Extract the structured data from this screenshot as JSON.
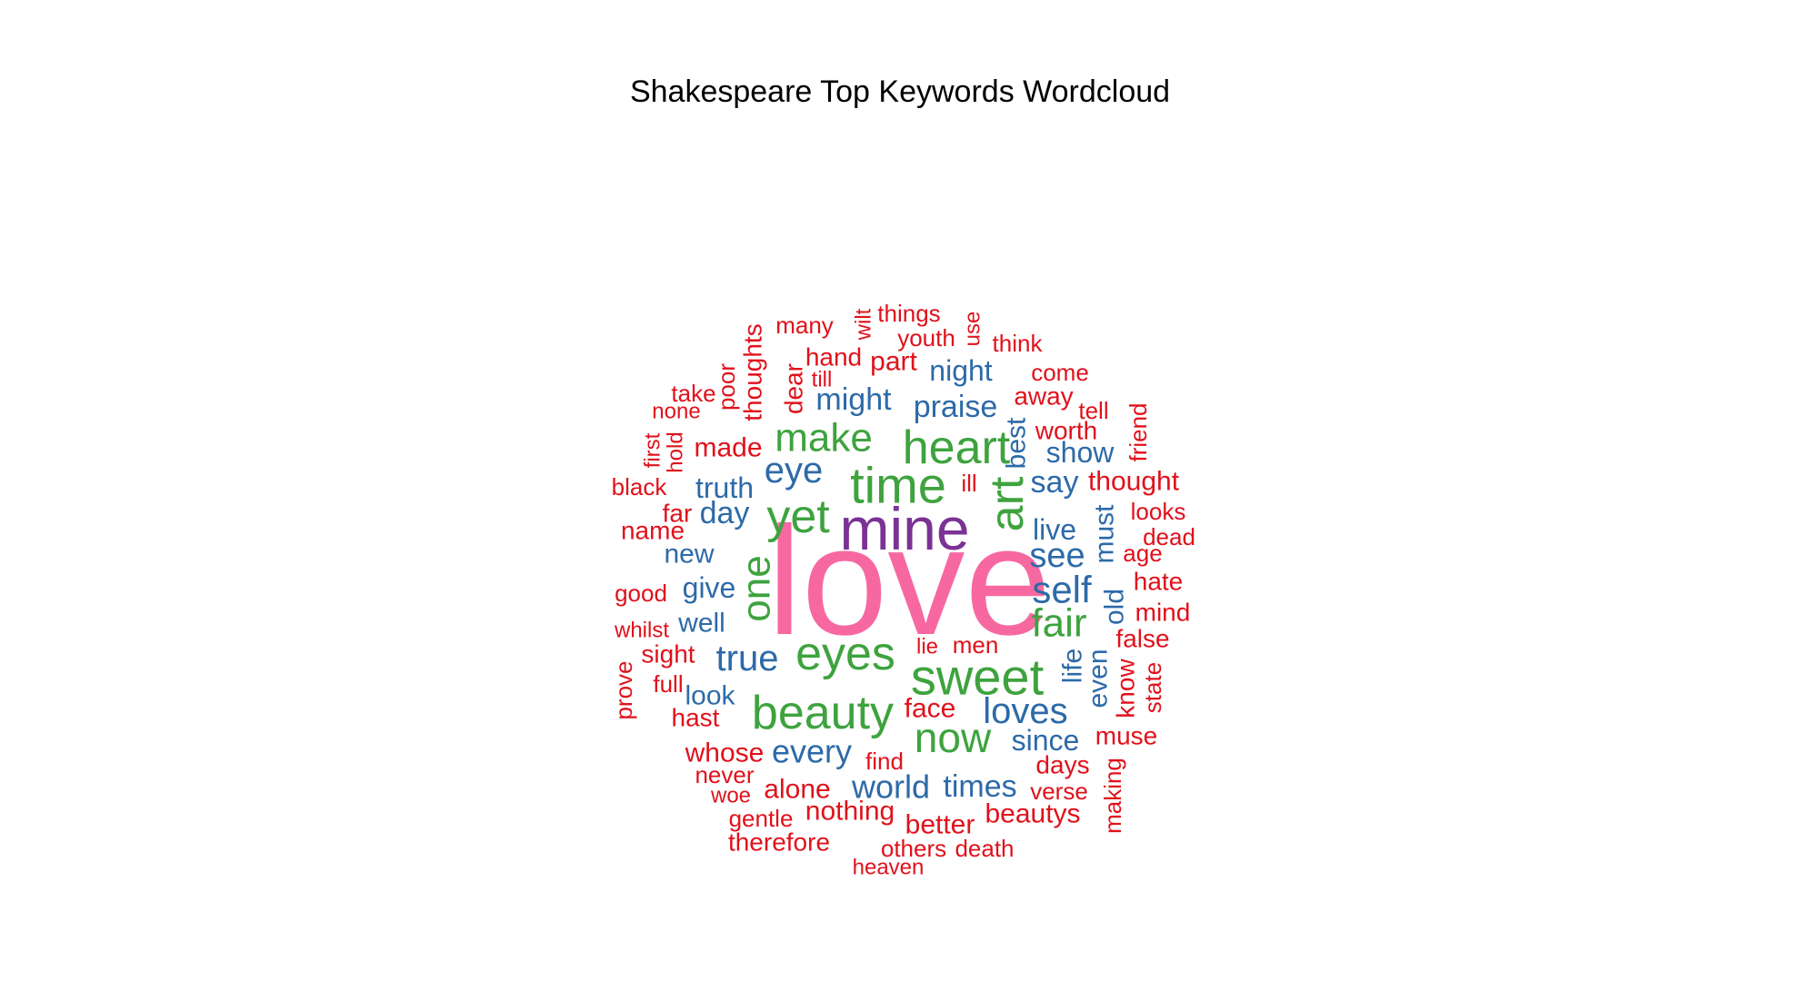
{
  "chart_data": {
    "type": "wordcloud",
    "title": "Shakespeare Top Keywords Wordcloud",
    "colors": {
      "pink": "#f768a1",
      "purple": "#7b3294",
      "green": "#3ea33e",
      "blue": "#2d6aa8",
      "red": "#e0111b"
    },
    "words": [
      {
        "text": "love",
        "size": 170,
        "color": "pink",
        "rotate": false
      },
      {
        "text": "mine",
        "size": 66,
        "color": "purple",
        "rotate": false
      },
      {
        "text": "time",
        "size": 56,
        "color": "green",
        "rotate": false
      },
      {
        "text": "heart",
        "size": 52,
        "color": "green",
        "rotate": false
      },
      {
        "text": "art",
        "size": 52,
        "color": "green",
        "rotate": true
      },
      {
        "text": "yet",
        "size": 52,
        "color": "green",
        "rotate": false
      },
      {
        "text": "eyes",
        "size": 52,
        "color": "green",
        "rotate": false
      },
      {
        "text": "sweet",
        "size": 56,
        "color": "green",
        "rotate": false
      },
      {
        "text": "beauty",
        "size": 52,
        "color": "green",
        "rotate": false
      },
      {
        "text": "make",
        "size": 44,
        "color": "green",
        "rotate": false
      },
      {
        "text": "now",
        "size": 46,
        "color": "green",
        "rotate": false
      },
      {
        "text": "fair",
        "size": 44,
        "color": "green",
        "rotate": false
      },
      {
        "text": "one",
        "size": 44,
        "color": "green",
        "rotate": true
      },
      {
        "text": "self",
        "size": 42,
        "color": "blue",
        "rotate": false
      },
      {
        "text": "true",
        "size": 40,
        "color": "blue",
        "rotate": false
      },
      {
        "text": "loves",
        "size": 40,
        "color": "blue",
        "rotate": false
      },
      {
        "text": "see",
        "size": 38,
        "color": "blue",
        "rotate": false
      },
      {
        "text": "eye",
        "size": 40,
        "color": "blue",
        "rotate": false
      },
      {
        "text": "every",
        "size": 36,
        "color": "blue",
        "rotate": false
      },
      {
        "text": "world",
        "size": 36,
        "color": "blue",
        "rotate": false
      },
      {
        "text": "times",
        "size": 34,
        "color": "blue",
        "rotate": false
      },
      {
        "text": "praise",
        "size": 34,
        "color": "blue",
        "rotate": false
      },
      {
        "text": "might",
        "size": 34,
        "color": "blue",
        "rotate": false
      },
      {
        "text": "say",
        "size": 34,
        "color": "blue",
        "rotate": false
      },
      {
        "text": "day",
        "size": 34,
        "color": "blue",
        "rotate": false
      },
      {
        "text": "truth",
        "size": 32,
        "color": "blue",
        "rotate": false
      },
      {
        "text": "live",
        "size": 32,
        "color": "blue",
        "rotate": false
      },
      {
        "text": "give",
        "size": 32,
        "color": "blue",
        "rotate": false
      },
      {
        "text": "show",
        "size": 32,
        "color": "blue",
        "rotate": false
      },
      {
        "text": "night",
        "size": 32,
        "color": "blue",
        "rotate": false
      },
      {
        "text": "since",
        "size": 32,
        "color": "blue",
        "rotate": false
      },
      {
        "text": "look",
        "size": 30,
        "color": "blue",
        "rotate": false
      },
      {
        "text": "well",
        "size": 30,
        "color": "blue",
        "rotate": false
      },
      {
        "text": "new",
        "size": 30,
        "color": "blue",
        "rotate": false
      },
      {
        "text": "must",
        "size": 30,
        "color": "blue",
        "rotate": true
      },
      {
        "text": "best",
        "size": 30,
        "color": "blue",
        "rotate": true
      },
      {
        "text": "old",
        "size": 30,
        "color": "blue",
        "rotate": true
      },
      {
        "text": "life",
        "size": 30,
        "color": "blue",
        "rotate": true
      },
      {
        "text": "even",
        "size": 30,
        "color": "blue",
        "rotate": true
      },
      {
        "text": "thought",
        "size": 30,
        "color": "red",
        "rotate": false
      },
      {
        "text": "face",
        "size": 30,
        "color": "red",
        "rotate": false
      },
      {
        "text": "alone",
        "size": 30,
        "color": "red",
        "rotate": false
      },
      {
        "text": "nothing",
        "size": 30,
        "color": "red",
        "rotate": false
      },
      {
        "text": "better",
        "size": 30,
        "color": "red",
        "rotate": false
      },
      {
        "text": "beautys",
        "size": 30,
        "color": "red",
        "rotate": false
      },
      {
        "text": "whose",
        "size": 30,
        "color": "red",
        "rotate": false
      },
      {
        "text": "made",
        "size": 30,
        "color": "red",
        "rotate": false
      },
      {
        "text": "therefore",
        "size": 28,
        "color": "red",
        "rotate": false
      },
      {
        "text": "worth",
        "size": 28,
        "color": "red",
        "rotate": false
      },
      {
        "text": "hand",
        "size": 28,
        "color": "red",
        "rotate": false
      },
      {
        "text": "part",
        "size": 30,
        "color": "red",
        "rotate": false
      },
      {
        "text": "away",
        "size": 28,
        "color": "red",
        "rotate": false
      },
      {
        "text": "days",
        "size": 28,
        "color": "red",
        "rotate": false
      },
      {
        "text": "mind",
        "size": 28,
        "color": "red",
        "rotate": false
      },
      {
        "text": "muse",
        "size": 28,
        "color": "red",
        "rotate": false
      },
      {
        "text": "false",
        "size": 28,
        "color": "red",
        "rotate": false
      },
      {
        "text": "hate",
        "size": 28,
        "color": "red",
        "rotate": false
      },
      {
        "text": "sight",
        "size": 28,
        "color": "red",
        "rotate": false
      },
      {
        "text": "hast",
        "size": 28,
        "color": "red",
        "rotate": false
      },
      {
        "text": "name",
        "size": 28,
        "color": "red",
        "rotate": false
      },
      {
        "text": "far",
        "size": 28,
        "color": "red",
        "rotate": false
      },
      {
        "text": "come",
        "size": 26,
        "color": "red",
        "rotate": false
      },
      {
        "text": "dead",
        "size": 26,
        "color": "red",
        "rotate": false
      },
      {
        "text": "never",
        "size": 26,
        "color": "red",
        "rotate": false
      },
      {
        "text": "others",
        "size": 26,
        "color": "red",
        "rotate": false
      },
      {
        "text": "death",
        "size": 26,
        "color": "red",
        "rotate": false
      },
      {
        "text": "verse",
        "size": 26,
        "color": "red",
        "rotate": false
      },
      {
        "text": "find",
        "size": 26,
        "color": "red",
        "rotate": false
      },
      {
        "text": "gentle",
        "size": 26,
        "color": "red",
        "rotate": false
      },
      {
        "text": "youth",
        "size": 26,
        "color": "red",
        "rotate": false
      },
      {
        "text": "things",
        "size": 26,
        "color": "red",
        "rotate": false
      },
      {
        "text": "many",
        "size": 26,
        "color": "red",
        "rotate": false
      },
      {
        "text": "think",
        "size": 26,
        "color": "red",
        "rotate": false
      },
      {
        "text": "tell",
        "size": 26,
        "color": "red",
        "rotate": false
      },
      {
        "text": "age",
        "size": 26,
        "color": "red",
        "rotate": false
      },
      {
        "text": "looks",
        "size": 26,
        "color": "red",
        "rotate": false
      },
      {
        "text": "good",
        "size": 26,
        "color": "red",
        "rotate": false
      },
      {
        "text": "black",
        "size": 26,
        "color": "red",
        "rotate": false
      },
      {
        "text": "take",
        "size": 26,
        "color": "red",
        "rotate": false
      },
      {
        "text": "full",
        "size": 26,
        "color": "red",
        "rotate": false
      },
      {
        "text": "men",
        "size": 26,
        "color": "red",
        "rotate": false
      },
      {
        "text": "ill",
        "size": 26,
        "color": "red",
        "rotate": false
      },
      {
        "text": "whilst",
        "size": 24,
        "color": "red",
        "rotate": false
      },
      {
        "text": "none",
        "size": 24,
        "color": "red",
        "rotate": false
      },
      {
        "text": "till",
        "size": 24,
        "color": "red",
        "rotate": false
      },
      {
        "text": "woe",
        "size": 24,
        "color": "red",
        "rotate": false
      },
      {
        "text": "heaven",
        "size": 24,
        "color": "red",
        "rotate": false
      },
      {
        "text": "lie",
        "size": 24,
        "color": "red",
        "rotate": false
      },
      {
        "text": "thoughts",
        "size": 28,
        "color": "red",
        "rotate": true
      },
      {
        "text": "dear",
        "size": 28,
        "color": "red",
        "rotate": true
      },
      {
        "text": "poor",
        "size": 26,
        "color": "red",
        "rotate": true
      },
      {
        "text": "first",
        "size": 24,
        "color": "red",
        "rotate": true
      },
      {
        "text": "hold",
        "size": 24,
        "color": "red",
        "rotate": true
      },
      {
        "text": "wilt",
        "size": 24,
        "color": "red",
        "rotate": true
      },
      {
        "text": "use",
        "size": 24,
        "color": "red",
        "rotate": true
      },
      {
        "text": "friend",
        "size": 26,
        "color": "red",
        "rotate": true
      },
      {
        "text": "know",
        "size": 28,
        "color": "red",
        "rotate": true
      },
      {
        "text": "state",
        "size": 26,
        "color": "red",
        "rotate": true
      },
      {
        "text": "prove",
        "size": 26,
        "color": "red",
        "rotate": true
      },
      {
        "text": "making",
        "size": 26,
        "color": "red",
        "rotate": true
      }
    ]
  }
}
